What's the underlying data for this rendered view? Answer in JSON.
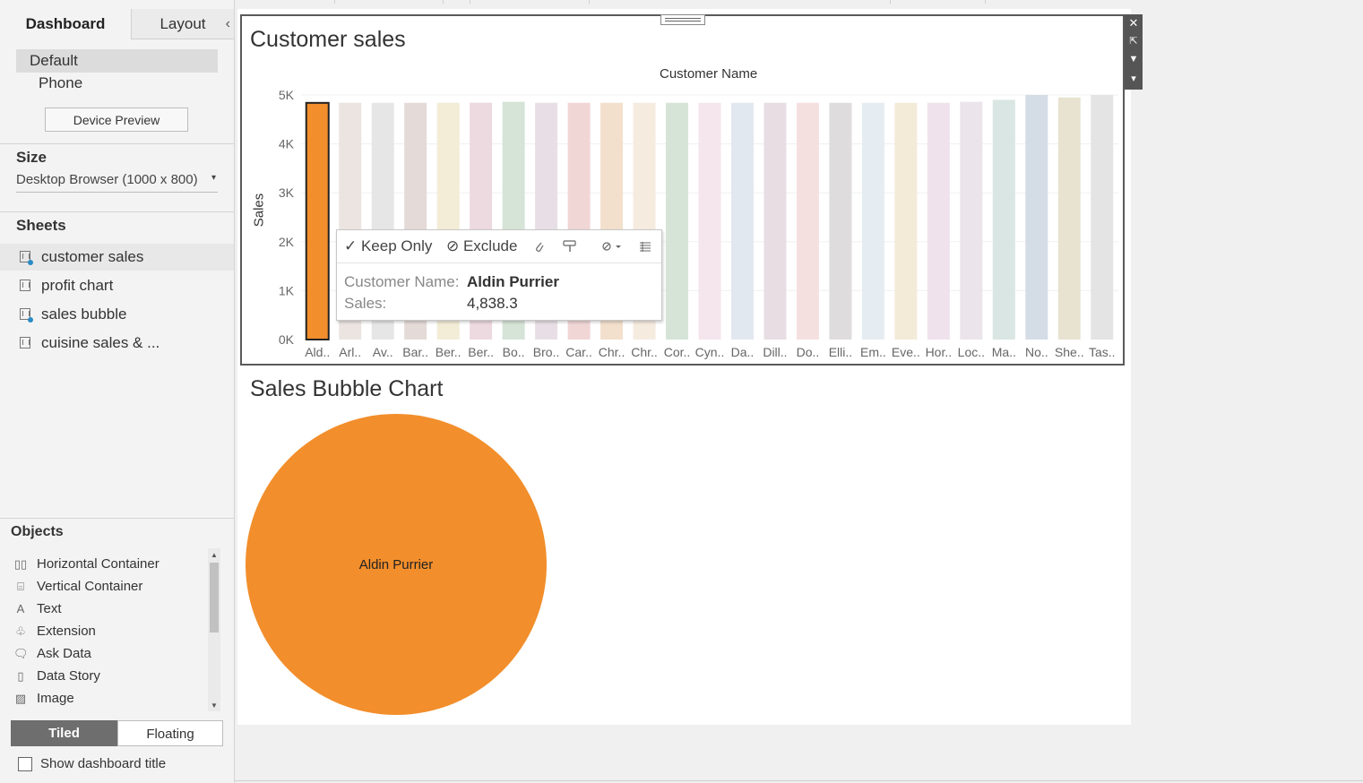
{
  "left_pane": {
    "tabs": {
      "dashboard": "Dashboard",
      "layout": "Layout"
    },
    "collapse_glyph": "‹",
    "devices": {
      "default": "Default",
      "phone": "Phone",
      "preview_button": "Device Preview"
    },
    "size": {
      "title": "Size",
      "value": "Desktop Browser (1000 x 800)"
    },
    "sheets": {
      "title": "Sheets",
      "items": [
        {
          "label": "customer sales",
          "in_use": true
        },
        {
          "label": "profit chart",
          "in_use": false
        },
        {
          "label": "sales bubble",
          "in_use": true
        },
        {
          "label": "cuisine sales & ...",
          "in_use": false
        }
      ]
    },
    "objects": {
      "title": "Objects",
      "items": [
        {
          "label": "Horizontal Container",
          "icon": "horizontal-container-icon",
          "glyph": "▯▯"
        },
        {
          "label": "Vertical Container",
          "icon": "vertical-container-icon",
          "glyph": "⌸"
        },
        {
          "label": "Text",
          "icon": "text-icon",
          "glyph": "A"
        },
        {
          "label": "Extension",
          "icon": "extension-icon",
          "glyph": "♧"
        },
        {
          "label": "Ask Data",
          "icon": "ask-data-icon",
          "glyph": "🗨"
        },
        {
          "label": "Data Story",
          "icon": "data-story-icon",
          "glyph": "▯"
        },
        {
          "label": "Image",
          "icon": "image-icon",
          "glyph": "▨"
        }
      ]
    },
    "layout_mode": {
      "tiled": "Tiled",
      "floating": "Floating"
    },
    "show_title_label": "Show dashboard title"
  },
  "dashboard": {
    "customer_sales": {
      "title": "Customer sales",
      "x_axis_title": "Customer Name",
      "y_axis_title": "Sales"
    },
    "bubble": {
      "title": "Sales Bubble Chart",
      "label": "Aldin Purrier",
      "color": "#f28e2b"
    },
    "zone_toolbar": {
      "close": "✕",
      "popout": "⇱",
      "filter": "▼",
      "menu": "▾"
    }
  },
  "tooltip": {
    "keep_only": "✓ Keep Only",
    "exclude": "⊘ Exclude",
    "icons": [
      "attach-icon",
      "highlight-icon",
      "group-icon",
      "view-data-icon"
    ],
    "fields": [
      {
        "key": "Customer Name:",
        "value": "Aldin Purrier"
      },
      {
        "key": "Sales:",
        "value": "4,838.3"
      }
    ]
  },
  "chart_data": {
    "type": "bar",
    "title": "Customer sales",
    "xlabel": "Customer Name",
    "ylabel": "Sales",
    "ylim": [
      0,
      5000
    ],
    "yticks": [
      0,
      1000,
      2000,
      3000,
      4000,
      5000
    ],
    "ytick_labels": [
      "0K",
      "1K",
      "2K",
      "3K",
      "4K",
      "5K"
    ],
    "categories": [
      "Ald..",
      "Arl..",
      "Av..",
      "Bar..",
      "Ber..",
      "Ber..",
      "Bo..",
      "Bro..",
      "Car..",
      "Chr..",
      "Chr..",
      "Cor..",
      "Cyn..",
      "Da..",
      "Dill..",
      "Do..",
      "Elli..",
      "Em..",
      "Eve..",
      "Hor..",
      "Loc..",
      "Ma..",
      "No..",
      "She..",
      "Tas.."
    ],
    "values": [
      4838.3,
      4840,
      4840,
      4840,
      4840,
      4840,
      4860,
      4840,
      4840,
      4840,
      4840,
      4840,
      4840,
      4840,
      4840,
      4840,
      4840,
      4840,
      4840,
      4840,
      4860,
      4900,
      5000,
      4950,
      5000
    ],
    "colors": [
      "#f28e2b",
      "#ebe4e1",
      "#e6e6e6",
      "#e4dad7",
      "#f3ecd7",
      "#edd9e0",
      "#d6e4d7",
      "#e8dfe6",
      "#f1d6d6",
      "#f2e0cd",
      "#f6ebdf",
      "#d5e4d6",
      "#f4e6ec",
      "#e2e8f0",
      "#e7dde3",
      "#f5e0e0",
      "#dedcdc",
      "#e6edf2",
      "#f3ead8",
      "#efe2ec",
      "#ebe4ea",
      "#d9e6e3",
      "#d4dce6",
      "#e8e3d1",
      "#e4e4e4"
    ],
    "selected_index": 0
  }
}
